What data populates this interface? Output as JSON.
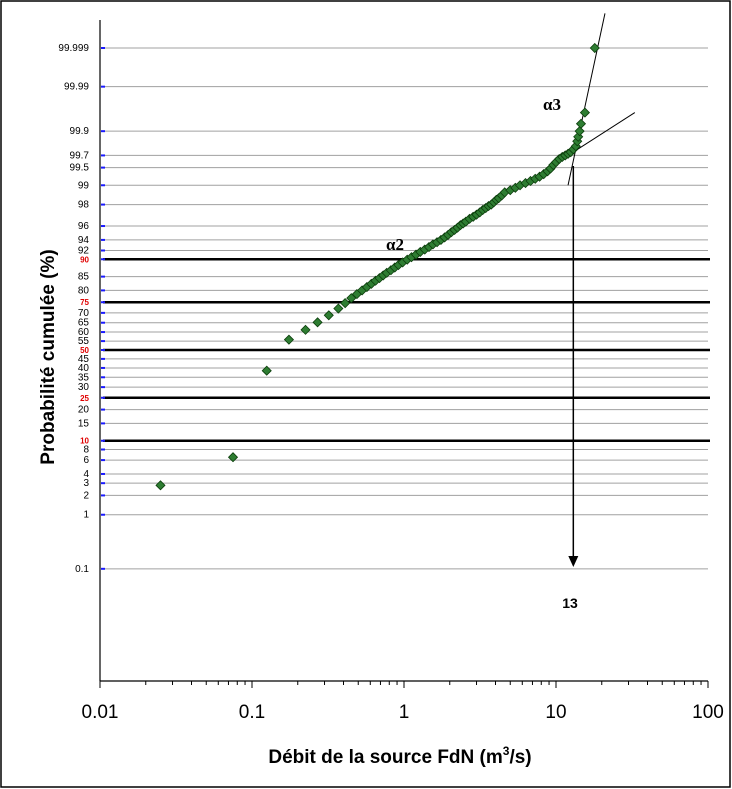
{
  "chart_data": {
    "type": "scatter",
    "title": "",
    "xlabel": "Débit de la source FdN (m³/s)",
    "xlabel_main": "Débit de la source FdN (m",
    "xlabel_sup": "3",
    "xlabel_tail": "/s)",
    "ylabel": "Probabilité cumulée (%)",
    "x_scale": "log",
    "xlim": [
      0.01,
      100
    ],
    "x_ticks": [
      {
        "value": 0.01,
        "label": "0.01"
      },
      {
        "value": 0.1,
        "label": "0.1"
      },
      {
        "value": 1,
        "label": "1"
      },
      {
        "value": 10,
        "label": "10"
      },
      {
        "value": 100,
        "label": "100"
      }
    ],
    "y_scale": "normal probability",
    "y_ticks": [
      {
        "value": 0.1,
        "label": "0.1"
      },
      {
        "value": 1,
        "label": "1"
      },
      {
        "value": 2,
        "label": "2"
      },
      {
        "value": 3,
        "label": "3"
      },
      {
        "value": 4,
        "label": "4"
      },
      {
        "value": 6,
        "label": "6"
      },
      {
        "value": 8,
        "label": "8"
      },
      {
        "value": 10,
        "label": "10",
        "highlight": true
      },
      {
        "value": 15,
        "label": "15"
      },
      {
        "value": 20,
        "label": "20"
      },
      {
        "value": 25,
        "label": "25",
        "highlight": true
      },
      {
        "value": 30,
        "label": "30"
      },
      {
        "value": 35,
        "label": "35"
      },
      {
        "value": 40,
        "label": "40"
      },
      {
        "value": 45,
        "label": "45"
      },
      {
        "value": 50,
        "label": "50",
        "highlight": true
      },
      {
        "value": 55,
        "label": "55"
      },
      {
        "value": 60,
        "label": "60"
      },
      {
        "value": 65,
        "label": "65"
      },
      {
        "value": 70,
        "label": "70"
      },
      {
        "value": 75,
        "label": "75",
        "highlight": true
      },
      {
        "value": 80,
        "label": "80"
      },
      {
        "value": 85,
        "label": "85"
      },
      {
        "value": 90,
        "label": "90",
        "highlight": true
      },
      {
        "value": 92,
        "label": "92"
      },
      {
        "value": 94,
        "label": "94"
      },
      {
        "value": 96,
        "label": "96"
      },
      {
        "value": 98,
        "label": "98"
      },
      {
        "value": 99,
        "label": "99"
      },
      {
        "value": 99.5,
        "label": "99.5"
      },
      {
        "value": 99.7,
        "label": "99.7"
      },
      {
        "value": 99.9,
        "label": "99.9"
      },
      {
        "value": 99.99,
        "label": "99.99"
      },
      {
        "value": 99.999,
        "label": "99.999"
      }
    ],
    "grid": true,
    "colors": {
      "marker_fill": "#2e7d32",
      "marker_stroke": "#0b3d0b",
      "highlight_tick": "#e00000",
      "tick_mark": "#1a1aff",
      "gridline": "#a0a0a0"
    },
    "series": [
      {
        "points": [
          [
            0.025,
            2.8
          ],
          [
            0.075,
            6.5
          ],
          [
            0.125,
            38.5
          ],
          [
            0.175,
            55.8
          ],
          [
            0.225,
            61.2
          ],
          [
            0.27,
            65.2
          ],
          [
            0.32,
            68.8
          ],
          [
            0.37,
            72.1
          ],
          [
            0.41,
            74.6
          ],
          [
            0.45,
            76.8
          ],
          [
            0.49,
            78.5
          ],
          [
            0.53,
            80.0
          ],
          [
            0.57,
            81.3
          ],
          [
            0.61,
            82.5
          ],
          [
            0.65,
            83.6
          ],
          [
            0.69,
            84.5
          ],
          [
            0.73,
            85.4
          ],
          [
            0.77,
            86.2
          ],
          [
            0.82,
            87.0
          ],
          [
            0.87,
            87.8
          ],
          [
            0.92,
            88.5
          ],
          [
            0.98,
            89.2
          ],
          [
            1.05,
            89.9
          ],
          [
            1.12,
            90.5
          ],
          [
            1.2,
            91.1
          ],
          [
            1.28,
            91.7
          ],
          [
            1.37,
            92.2
          ],
          [
            1.46,
            92.7
          ],
          [
            1.55,
            93.2
          ],
          [
            1.65,
            93.6
          ],
          [
            1.75,
            94.0
          ],
          [
            1.85,
            94.4
          ],
          [
            1.95,
            94.8
          ],
          [
            2.05,
            95.2
          ],
          [
            2.15,
            95.5
          ],
          [
            2.25,
            95.8
          ],
          [
            2.35,
            96.1
          ],
          [
            2.45,
            96.3
          ],
          [
            2.55,
            96.5
          ],
          [
            2.7,
            96.8
          ],
          [
            2.85,
            97.0
          ],
          [
            3.0,
            97.2
          ],
          [
            3.15,
            97.4
          ],
          [
            3.3,
            97.6
          ],
          [
            3.45,
            97.75
          ],
          [
            3.6,
            97.9
          ],
          [
            3.75,
            98.0
          ],
          [
            3.9,
            98.15
          ],
          [
            4.05,
            98.3
          ],
          [
            4.2,
            98.4
          ],
          [
            4.4,
            98.55
          ],
          [
            4.6,
            98.7
          ],
          [
            5.0,
            98.8
          ],
          [
            5.4,
            98.9
          ],
          [
            5.8,
            99.0
          ],
          [
            6.3,
            99.08
          ],
          [
            6.8,
            99.15
          ],
          [
            7.3,
            99.22
          ],
          [
            7.8,
            99.28
          ],
          [
            8.3,
            99.35
          ],
          [
            8.8,
            99.42
          ],
          [
            9.2,
            99.48
          ],
          [
            9.6,
            99.55
          ],
          [
            10.0,
            99.6
          ],
          [
            10.5,
            99.65
          ],
          [
            11.0,
            99.68
          ],
          [
            11.5,
            99.7
          ],
          [
            12.0,
            99.72
          ],
          [
            12.5,
            99.74
          ],
          [
            13.0,
            99.77
          ],
          [
            13.5,
            99.8
          ],
          [
            13.8,
            99.84
          ],
          [
            14.0,
            99.87
          ],
          [
            14.3,
            99.9
          ],
          [
            14.6,
            99.93
          ],
          [
            15.5,
            99.96
          ],
          [
            18.0,
            99.999
          ]
        ]
      }
    ],
    "annotations": {
      "alpha2": "α2",
      "alpha3": "α3",
      "threshold_label": "13",
      "threshold_x": 13
    },
    "fit_lines": [
      {
        "x": [
          12,
          21
        ],
        "y": [
          99.0,
          99.9999
        ]
      },
      {
        "x": [
          12,
          33
        ],
        "y": [
          99.7,
          99.96
        ]
      }
    ]
  }
}
